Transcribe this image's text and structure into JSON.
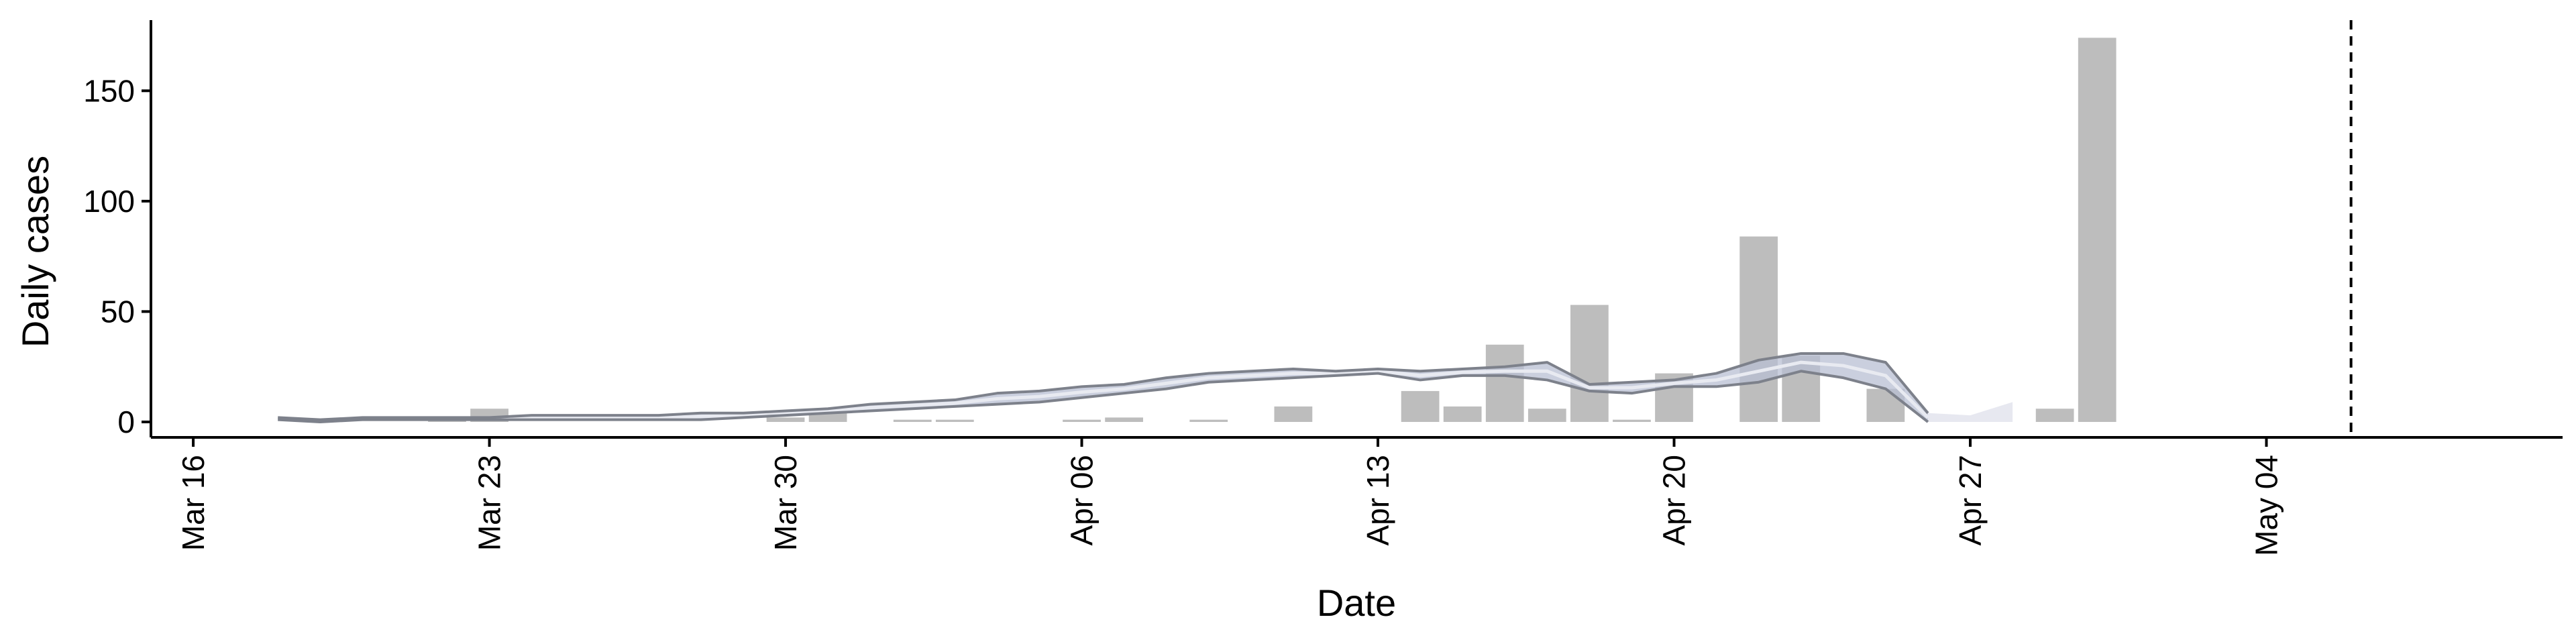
{
  "chart_data": {
    "type": "bar",
    "xlabel": "Date",
    "ylabel": "Daily cases",
    "x_start": "2020-03-15",
    "x_end": "2020-05-11",
    "ylim": [
      -7,
      182
    ],
    "y_ticks": [
      0,
      50,
      100,
      150
    ],
    "x_ticks": [
      {
        "date": "2020-03-16",
        "label": "Mar 16"
      },
      {
        "date": "2020-03-23",
        "label": "Mar 23"
      },
      {
        "date": "2020-03-30",
        "label": "Mar 30"
      },
      {
        "date": "2020-04-06",
        "label": "Apr 06"
      },
      {
        "date": "2020-04-13",
        "label": "Apr 13"
      },
      {
        "date": "2020-04-20",
        "label": "Apr 20"
      },
      {
        "date": "2020-04-27",
        "label": "Apr 27"
      },
      {
        "date": "2020-05-04",
        "label": "May 04"
      }
    ],
    "bars": [
      {
        "date": "2020-03-22",
        "value": 2
      },
      {
        "date": "2020-03-23",
        "value": 6
      },
      {
        "date": "2020-03-30",
        "value": 2
      },
      {
        "date": "2020-03-31",
        "value": 5
      },
      {
        "date": "2020-04-02",
        "value": 1
      },
      {
        "date": "2020-04-03",
        "value": 1
      },
      {
        "date": "2020-04-06",
        "value": 1
      },
      {
        "date": "2020-04-07",
        "value": 2
      },
      {
        "date": "2020-04-09",
        "value": 1
      },
      {
        "date": "2020-04-11",
        "value": 7
      },
      {
        "date": "2020-04-14",
        "value": 14
      },
      {
        "date": "2020-04-15",
        "value": 7
      },
      {
        "date": "2020-04-16",
        "value": 35
      },
      {
        "date": "2020-04-17",
        "value": 6
      },
      {
        "date": "2020-04-18",
        "value": 53
      },
      {
        "date": "2020-04-19",
        "value": 1
      },
      {
        "date": "2020-04-20",
        "value": 22
      },
      {
        "date": "2020-04-22",
        "value": 84
      },
      {
        "date": "2020-04-23",
        "value": 30
      },
      {
        "date": "2020-04-25",
        "value": 15
      },
      {
        "date": "2020-04-29",
        "value": 6
      },
      {
        "date": "2020-04-30",
        "value": 174
      }
    ],
    "band": {
      "dates": [
        "2020-03-18",
        "2020-03-19",
        "2020-03-20",
        "2020-03-21",
        "2020-03-22",
        "2020-03-23",
        "2020-03-24",
        "2020-03-25",
        "2020-03-26",
        "2020-03-27",
        "2020-03-28",
        "2020-03-29",
        "2020-03-30",
        "2020-03-31",
        "2020-04-01",
        "2020-04-02",
        "2020-04-03",
        "2020-04-04",
        "2020-04-05",
        "2020-04-06",
        "2020-04-07",
        "2020-04-08",
        "2020-04-09",
        "2020-04-10",
        "2020-04-11",
        "2020-04-12",
        "2020-04-13",
        "2020-04-14",
        "2020-04-15",
        "2020-04-16",
        "2020-04-17",
        "2020-04-18",
        "2020-04-19",
        "2020-04-20",
        "2020-04-21",
        "2020-04-22",
        "2020-04-23",
        "2020-04-24",
        "2020-04-25",
        "2020-04-26",
        "2020-04-27",
        "2020-04-28"
      ],
      "upper": [
        2,
        1,
        2,
        2,
        2,
        2,
        3,
        3,
        3,
        3,
        4,
        4,
        5,
        6,
        8,
        9,
        10,
        13,
        14,
        16,
        17,
        20,
        22,
        23,
        24,
        23,
        24,
        23,
        24,
        25,
        27,
        17,
        18,
        19,
        22,
        28,
        31,
        31,
        27,
        4,
        3,
        9
      ],
      "lower": [
        1,
        0,
        1,
        1,
        1,
        1,
        1,
        1,
        1,
        1,
        1,
        2,
        3,
        4,
        5,
        6,
        7,
        8,
        9,
        11,
        13,
        15,
        18,
        19,
        20,
        21,
        22,
        19,
        21,
        21,
        19,
        14,
        13,
        16,
        16,
        18,
        23,
        20,
        15,
        0,
        0,
        0
      ],
      "mean": [
        1.5,
        0.5,
        1.5,
        1.5,
        1.5,
        1.5,
        2,
        2,
        2,
        2,
        2.5,
        3,
        4,
        5,
        6.5,
        7.5,
        8.5,
        10.5,
        11.5,
        13.5,
        15,
        17.5,
        20,
        21,
        22,
        22,
        23,
        21,
        22.5,
        23,
        23,
        15.5,
        15.5,
        17.5,
        19,
        23,
        27,
        25.5,
        21,
        2,
        1.5,
        4.5
      ]
    },
    "reference_date": "2020-05-06",
    "colors": {
      "bar": "#bdbdbd",
      "line": "#7d818b",
      "band_fill": "#b8bfd3",
      "band_tail": "#e4e6ee",
      "axis": "#000000",
      "reference_line": "#000000"
    },
    "grid": false,
    "legend": "none"
  }
}
